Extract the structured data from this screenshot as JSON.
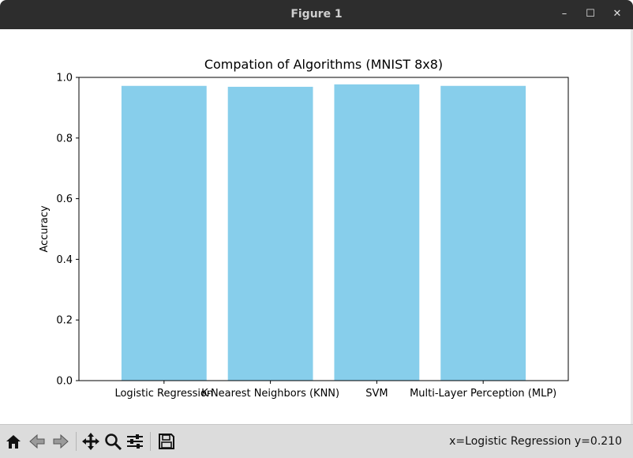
{
  "window": {
    "title": "Figure 1",
    "minimize_glyph": "–",
    "maximize_glyph": "☐",
    "close_glyph": "✕"
  },
  "toolbar": {
    "icons": [
      "home-icon",
      "back-arrow-icon",
      "forward-arrow-icon",
      "pan-icon",
      "zoom-icon",
      "configure-subplots-icon",
      "save-icon"
    ],
    "status_text": "x=Logistic Regression y=0.210"
  },
  "colors": {
    "bar": "#87ceeb",
    "axis": "#000000",
    "titlebar": "#2d2d2d",
    "toolbar": "#dcdcdc"
  },
  "chart_data": {
    "type": "bar",
    "title": "Compation of Algorithms (MNIST 8x8)",
    "xlabel": "",
    "ylabel": "Accuracy",
    "categories": [
      "Logistic Regression",
      "K-Nearest Neighbors (KNN)",
      "SVM",
      "Multi-Layer Perception (MLP)"
    ],
    "values": [
      0.972,
      0.969,
      0.977,
      0.972
    ],
    "ylim": [
      0,
      1.0
    ],
    "yticks": [
      "0.0",
      "0.2",
      "0.4",
      "0.6",
      "0.8",
      "1.0"
    ],
    "grid": false,
    "legend": "none"
  }
}
